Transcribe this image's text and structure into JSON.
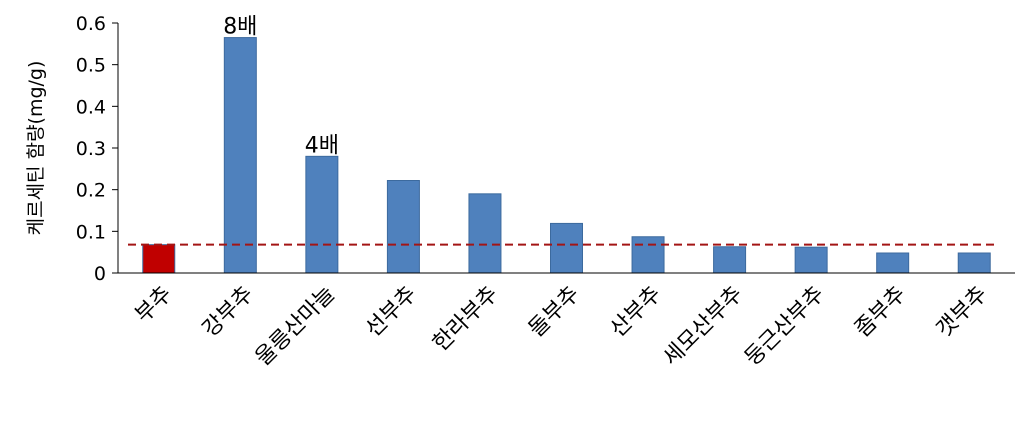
{
  "chart_data": {
    "type": "bar",
    "title": "",
    "xlabel": "",
    "ylabel": "케르세틴 함량(mg/g)",
    "ylim": [
      0,
      0.6
    ],
    "yticks": [
      "0",
      "0.1",
      "0.2",
      "0.3",
      "0.4",
      "0.5",
      "0.6"
    ],
    "grid": false,
    "categories": [
      "부추",
      "강부추",
      "울릉산마늘",
      "선부추",
      "한라부추",
      "돌부추",
      "산부추",
      "세모산부추",
      "둥근산부추",
      "좀부추",
      "갯부추"
    ],
    "values": [
      0.068,
      0.565,
      0.28,
      0.222,
      0.19,
      0.119,
      0.087,
      0.063,
      0.062,
      0.048,
      0.048
    ],
    "bar_colors": [
      "#c00000",
      "#4f81bd",
      "#4f81bd",
      "#4f81bd",
      "#4f81bd",
      "#4f81bd",
      "#4f81bd",
      "#4f81bd",
      "#4f81bd",
      "#4f81bd",
      "#4f81bd"
    ],
    "bar_border_color": "#3c6a9e",
    "reference_line": {
      "value": 0.068,
      "color": "#a31515",
      "style": "dashed"
    },
    "annotations": [
      {
        "category_index": 1,
        "text": "8배"
      },
      {
        "category_index": 2,
        "text": "4배"
      }
    ]
  }
}
